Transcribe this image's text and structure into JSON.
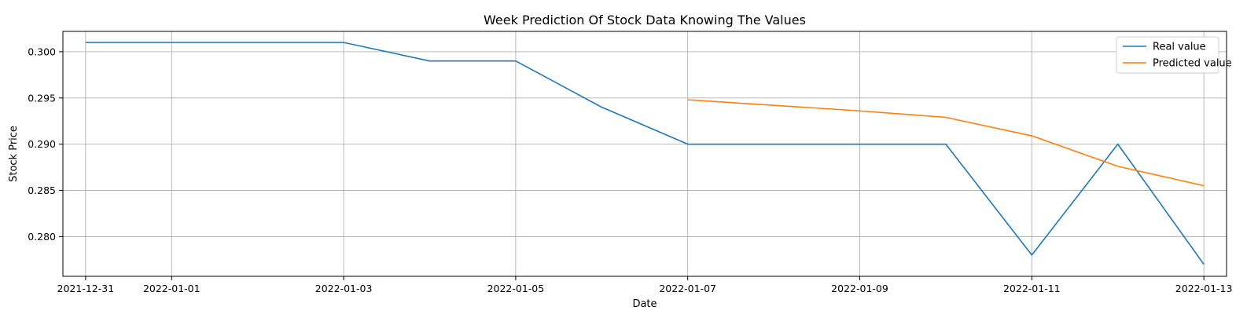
{
  "chart_data": {
    "type": "line",
    "title": "Week Prediction Of Stock Data Knowing The Values",
    "xlabel": "Date",
    "ylabel": "Stock Price",
    "grid": true,
    "legend_position": "top-right",
    "x_type": "date",
    "xlim": [
      "2021-12-30T17:40",
      "2022-01-13T06:20"
    ],
    "ylim": [
      0.2757,
      0.3022
    ],
    "x_ticks": [
      "2021-12-31",
      "2022-01-01",
      "2022-01-03",
      "2022-01-05",
      "2022-01-07",
      "2022-01-09",
      "2022-01-11",
      "2022-01-13"
    ],
    "y_ticks": [
      0.28,
      0.285,
      0.29,
      0.295,
      0.3
    ],
    "y_tick_labels": [
      "0.280",
      "0.285",
      "0.290",
      "0.295",
      "0.300"
    ],
    "series": [
      {
        "name": "Real value",
        "color": "#1f77b4",
        "x": [
          "2021-12-31",
          "2022-01-01",
          "2022-01-02",
          "2022-01-03",
          "2022-01-04",
          "2022-01-05",
          "2022-01-06",
          "2022-01-07",
          "2022-01-08",
          "2022-01-09",
          "2022-01-10",
          "2022-01-11",
          "2022-01-12",
          "2022-01-13"
        ],
        "y": [
          0.301,
          0.301,
          0.301,
          0.301,
          0.299,
          0.299,
          0.294,
          0.29,
          0.29,
          0.29,
          0.29,
          0.278,
          0.29,
          0.277
        ]
      },
      {
        "name": "Predicted value",
        "color": "#ff7f0e",
        "x": [
          "2022-01-07",
          "2022-01-08",
          "2022-01-09",
          "2022-01-10",
          "2022-01-11",
          "2022-01-12",
          "2022-01-13"
        ],
        "y": [
          0.2948,
          0.2942,
          0.2936,
          0.2929,
          0.2909,
          0.2876,
          0.2855
        ]
      }
    ]
  }
}
